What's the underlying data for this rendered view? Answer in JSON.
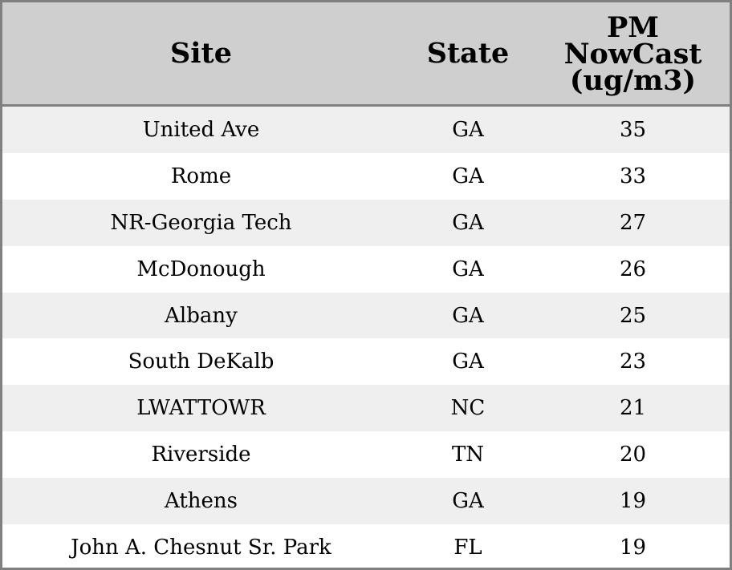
{
  "chart_data": {
    "type": "table",
    "columns": [
      "Site",
      "State",
      "PM NowCast (ug/m3)"
    ],
    "header_lines": {
      "value": [
        "PM",
        "NowCast",
        "(ug/m3)"
      ]
    },
    "rows": [
      {
        "site": "United Ave",
        "state": "GA",
        "value": 35
      },
      {
        "site": "Rome",
        "state": "GA",
        "value": 33
      },
      {
        "site": "NR-Georgia Tech",
        "state": "GA",
        "value": 27
      },
      {
        "site": "McDonough",
        "state": "GA",
        "value": 26
      },
      {
        "site": "Albany",
        "state": "GA",
        "value": 25
      },
      {
        "site": "South DeKalb",
        "state": "GA",
        "value": 23
      },
      {
        "site": "LWATTOWR",
        "state": "NC",
        "value": 21
      },
      {
        "site": "Riverside",
        "state": "TN",
        "value": 20
      },
      {
        "site": "Athens",
        "state": "GA",
        "value": 19
      },
      {
        "site": "John A. Chesnut Sr. Park",
        "state": "FL",
        "value": 19
      }
    ]
  },
  "colors": {
    "header_background": "#cfcfcf",
    "row_shade": "#efefef",
    "row_plain": "#ffffff",
    "border": "#808080",
    "text": "#000000"
  }
}
